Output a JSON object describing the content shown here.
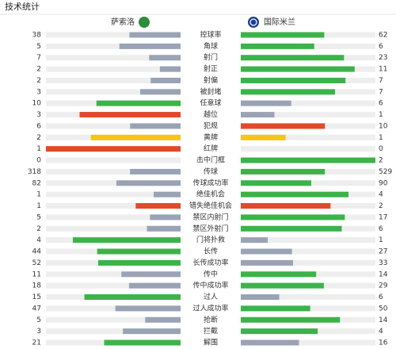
{
  "header": {
    "title": "技术统计"
  },
  "teams": {
    "home": "萨索洛",
    "away": "国际米兰",
    "home_color": "#2e8b3a",
    "away_color": "#1c3f95"
  },
  "colors": {
    "track": "#eeeeee"
  },
  "stats": [
    {
      "label": "控球率",
      "home": 38,
      "away": 62,
      "home_color": "#9aa3b5",
      "away_color": "#3cb34a"
    },
    {
      "label": "角球",
      "home": 5,
      "away": 6,
      "home_color": "#9aa3b5",
      "away_color": "#3cb34a"
    },
    {
      "label": "射门",
      "home": 7,
      "away": 23,
      "home_color": "#9aa3b5",
      "away_color": "#3cb34a"
    },
    {
      "label": "射正",
      "home": 2,
      "away": 11,
      "home_color": "#9aa3b5",
      "away_color": "#3cb34a"
    },
    {
      "label": "射偏",
      "home": 2,
      "away": 7,
      "home_color": "#9aa3b5",
      "away_color": "#3cb34a"
    },
    {
      "label": "被封堵",
      "home": 3,
      "away": 7,
      "home_color": "#9aa3b5",
      "away_color": "#3cb34a"
    },
    {
      "label": "任意球",
      "home": 10,
      "away": 6,
      "home_color": "#3cb34a",
      "away_color": "#9aa3b5"
    },
    {
      "label": "越位",
      "home": 3,
      "away": 1,
      "home_color": "#e04a2a",
      "away_color": "#9aa3b5"
    },
    {
      "label": "犯规",
      "home": 6,
      "away": 10,
      "home_color": "#9aa3b5",
      "away_color": "#e04a2a"
    },
    {
      "label": "黄牌",
      "home": 2,
      "away": 1,
      "home_color": "#f5c518",
      "away_color": "#f5c518"
    },
    {
      "label": "红牌",
      "home": 1,
      "away": 0,
      "home_color": "#e04a2a",
      "away_color": "#e04a2a"
    },
    {
      "label": "击中门框",
      "home": 0,
      "away": 2,
      "home_color": "#9aa3b5",
      "away_color": "#3cb34a"
    },
    {
      "label": "传球",
      "home": 318,
      "away": 529,
      "home_color": "#9aa3b5",
      "away_color": "#3cb34a"
    },
    {
      "label": "传球成功率",
      "home": 82,
      "away": 90,
      "home_color": "#9aa3b5",
      "away_color": "#3cb34a"
    },
    {
      "label": "绝佳机会",
      "home": 1,
      "away": 4,
      "home_color": "#9aa3b5",
      "away_color": "#3cb34a"
    },
    {
      "label": "错失绝佳机会",
      "home": 1,
      "away": 2,
      "home_color": "#e04a2a",
      "away_color": "#e04a2a"
    },
    {
      "label": "禁区内射门",
      "home": 5,
      "away": 17,
      "home_color": "#9aa3b5",
      "away_color": "#3cb34a"
    },
    {
      "label": "禁区外射门",
      "home": 2,
      "away": 6,
      "home_color": "#9aa3b5",
      "away_color": "#3cb34a"
    },
    {
      "label": "门将扑救",
      "home": 4,
      "away": 1,
      "home_color": "#3cb34a",
      "away_color": "#9aa3b5"
    },
    {
      "label": "长传",
      "home": 44,
      "away": 27,
      "home_color": "#3cb34a",
      "away_color": "#9aa3b5"
    },
    {
      "label": "长传成功率",
      "home": 52,
      "away": 33,
      "home_color": "#3cb34a",
      "away_color": "#9aa3b5"
    },
    {
      "label": "传中",
      "home": 11,
      "away": 14,
      "home_color": "#9aa3b5",
      "away_color": "#3cb34a"
    },
    {
      "label": "传中成功率",
      "home": 18,
      "away": 29,
      "home_color": "#9aa3b5",
      "away_color": "#3cb34a"
    },
    {
      "label": "过人",
      "home": 15,
      "away": 6,
      "home_color": "#3cb34a",
      "away_color": "#9aa3b5"
    },
    {
      "label": "过人成功率",
      "home": 47,
      "away": 50,
      "home_color": "#9aa3b5",
      "away_color": "#3cb34a"
    },
    {
      "label": "抢断",
      "home": 5,
      "away": 14,
      "home_color": "#9aa3b5",
      "away_color": "#3cb34a"
    },
    {
      "label": "拦截",
      "home": 3,
      "away": 4,
      "home_color": "#9aa3b5",
      "away_color": "#3cb34a"
    },
    {
      "label": "解围",
      "home": 21,
      "away": 16,
      "home_color": "#3cb34a",
      "away_color": "#9aa3b5"
    }
  ]
}
